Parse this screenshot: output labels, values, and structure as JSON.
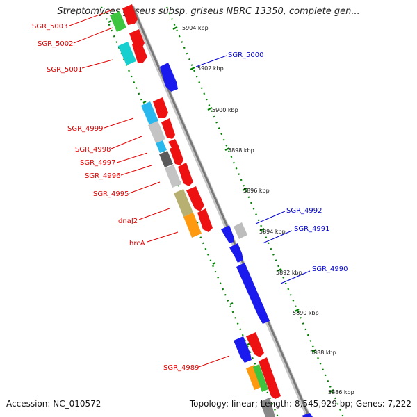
{
  "title": "Streptomyces griseus subsp. griseus NBRC 13350, complete gen...",
  "footer": {
    "accession": "Accession: NC_010572",
    "summary": "Topology: linear; Length: 8,545,929 bp; Genes: 7,222"
  },
  "colors": {
    "left_label": "#dd0000",
    "right_label": "#0000cc",
    "backbone": "#888888",
    "tick": "#008000"
  },
  "ruler": {
    "unit": "kbp",
    "ticks": [
      {
        "kbp": 5904,
        "label": "5904 kbp"
      },
      {
        "kbp": 5902,
        "label": "5902 kbp"
      },
      {
        "kbp": 5900,
        "label": "5900 kbp"
      },
      {
        "kbp": 5898,
        "label": "5898 kbp"
      },
      {
        "kbp": 5896,
        "label": "5896 kbp"
      },
      {
        "kbp": 5894,
        "label": "5894 kbp"
      },
      {
        "kbp": 5892,
        "label": "5892 kbp"
      },
      {
        "kbp": 5890,
        "label": "5890 kbp"
      },
      {
        "kbp": 5888,
        "label": "5888 kbp"
      },
      {
        "kbp": 5886,
        "label": "5886 kbp"
      }
    ]
  },
  "gene_labels": {
    "left": [
      "SGR_5003",
      "SGR_5002",
      "SGR_5001",
      "SGR_4999",
      "SGR_4998",
      "SGR_4997",
      "SGR_4996",
      "SGR_4995",
      "dnaJ2",
      "hrcA",
      "SGR_4989"
    ],
    "right": [
      "SGR_5000",
      "SGR_4992",
      "SGR_4991",
      "SGR_4990"
    ]
  }
}
